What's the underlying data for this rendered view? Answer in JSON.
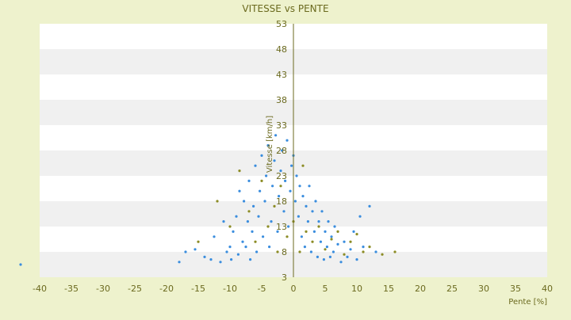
{
  "chart_data": {
    "type": "scatter",
    "title": "VITESSE vs PENTE",
    "xlabel": "Pente [%]",
    "ylabel": "Vitesse [km/h]",
    "xlim": [
      -40,
      40
    ],
    "ylim": [
      3,
      53
    ],
    "xticks": [
      -40,
      -35,
      -30,
      -25,
      -20,
      -15,
      -10,
      -5,
      0,
      5,
      10,
      15,
      20,
      25,
      30,
      35,
      40
    ],
    "yticks": [
      3,
      8,
      13,
      18,
      23,
      28,
      33,
      38,
      43,
      48,
      53
    ],
    "grid": "horizontal alternating bands",
    "legend": "none",
    "colors": {
      "background": "#eef2cd",
      "band_light": "#ffffff",
      "band_dark": "#f0f0f0",
      "axis_text": "#6b6a1f",
      "series_blue": "#3a8dde",
      "series_olive": "#8c8c25"
    },
    "series": [
      {
        "color": "#3a8dde",
        "points": [
          [
            -43,
            5.5
          ],
          [
            -18,
            6
          ],
          [
            -17,
            8
          ],
          [
            -15.5,
            8.5
          ],
          [
            -14,
            7
          ],
          [
            -13,
            6.5
          ],
          [
            -12.5,
            11
          ],
          [
            -11.5,
            6
          ],
          [
            -11,
            14
          ],
          [
            -10.5,
            8
          ],
          [
            -10,
            9
          ],
          [
            -9.8,
            6.5
          ],
          [
            -9.5,
            12
          ],
          [
            -9,
            15
          ],
          [
            -8.7,
            7.5
          ],
          [
            -8.5,
            20
          ],
          [
            -8,
            10
          ],
          [
            -7.8,
            18
          ],
          [
            -7.5,
            9
          ],
          [
            -7.2,
            14
          ],
          [
            -7,
            22
          ],
          [
            -6.8,
            6.5
          ],
          [
            -6.5,
            12
          ],
          [
            -6.3,
            17
          ],
          [
            -6,
            25
          ],
          [
            -5.8,
            8
          ],
          [
            -5.5,
            15
          ],
          [
            -5.3,
            20
          ],
          [
            -5,
            27
          ],
          [
            -4.8,
            11
          ],
          [
            -4.5,
            18
          ],
          [
            -4.3,
            23
          ],
          [
            -4,
            29
          ],
          [
            -3.8,
            9
          ],
          [
            -3.5,
            14
          ],
          [
            -3.3,
            21
          ],
          [
            -3,
            26
          ],
          [
            -2.8,
            31
          ],
          [
            -2.5,
            12
          ],
          [
            -2.3,
            19
          ],
          [
            -2,
            24
          ],
          [
            -1.8,
            28
          ],
          [
            -1.5,
            16
          ],
          [
            -1.3,
            22
          ],
          [
            -1,
            30
          ],
          [
            -0.8,
            13
          ],
          [
            -0.5,
            20
          ],
          [
            -0.3,
            25
          ],
          [
            0,
            27
          ],
          [
            0.3,
            18
          ],
          [
            0.5,
            23
          ],
          [
            0.8,
            15
          ],
          [
            1,
            21
          ],
          [
            1.3,
            11
          ],
          [
            1.5,
            19
          ],
          [
            1.8,
            9
          ],
          [
            2,
            17
          ],
          [
            2.3,
            14
          ],
          [
            2.5,
            21
          ],
          [
            2.8,
            8
          ],
          [
            3,
            16
          ],
          [
            3.3,
            12
          ],
          [
            3.5,
            18
          ],
          [
            3.8,
            7
          ],
          [
            4,
            14
          ],
          [
            4.3,
            10
          ],
          [
            4.5,
            16
          ],
          [
            4.8,
            6.5
          ],
          [
            5,
            12
          ],
          [
            5.3,
            9
          ],
          [
            5.5,
            14
          ],
          [
            5.8,
            7
          ],
          [
            6,
            11
          ],
          [
            6.3,
            8
          ],
          [
            6.5,
            13
          ],
          [
            7,
            9.5
          ],
          [
            7.5,
            6
          ],
          [
            8,
            10
          ],
          [
            8.5,
            7
          ],
          [
            9,
            8.5
          ],
          [
            9.5,
            12
          ],
          [
            10,
            6.5
          ],
          [
            10.5,
            15
          ],
          [
            11,
            9
          ],
          [
            12,
            17
          ],
          [
            13,
            8
          ]
        ]
      },
      {
        "color": "#8c8c25",
        "points": [
          [
            -15,
            10
          ],
          [
            -12,
            18
          ],
          [
            -10,
            13
          ],
          [
            -8.5,
            24
          ],
          [
            -7,
            16
          ],
          [
            -6,
            10
          ],
          [
            -5,
            22
          ],
          [
            -4,
            13
          ],
          [
            -3,
            17
          ],
          [
            -2.5,
            8
          ],
          [
            -2,
            21
          ],
          [
            -1,
            11
          ],
          [
            0,
            14
          ],
          [
            1,
            8
          ],
          [
            1.5,
            25
          ],
          [
            2,
            12
          ],
          [
            3,
            10
          ],
          [
            4,
            13
          ],
          [
            5,
            8.5
          ],
          [
            6,
            10.5
          ],
          [
            7,
            12
          ],
          [
            8,
            7.5
          ],
          [
            9,
            10
          ],
          [
            10,
            11.5
          ],
          [
            11,
            8
          ],
          [
            12,
            9
          ],
          [
            14,
            7.5
          ],
          [
            16,
            8
          ]
        ]
      }
    ]
  }
}
